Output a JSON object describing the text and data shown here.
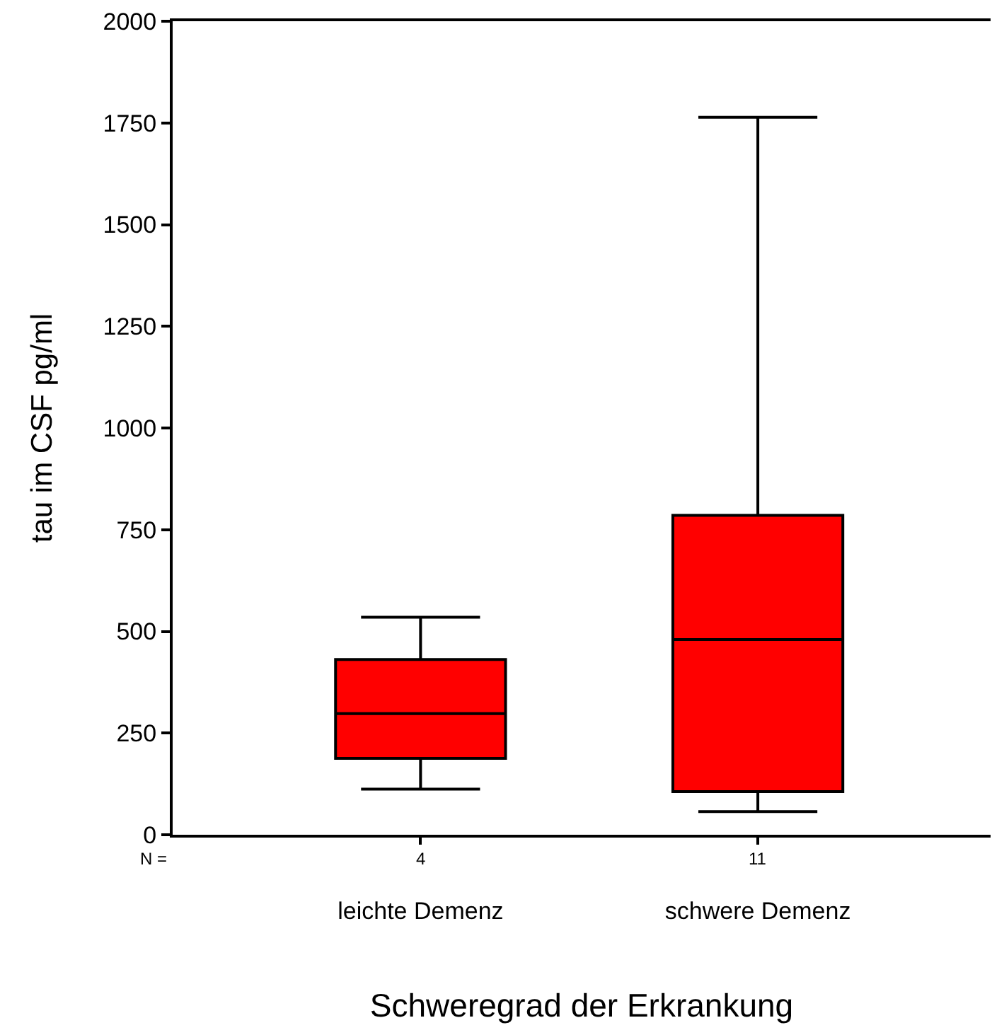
{
  "chart_data": {
    "type": "box",
    "xlabel": "Schweregrad der Erkrankung",
    "ylabel": "tau im CSF pg/ml",
    "categories": [
      "leichte Demenz",
      "schwere Demenz"
    ],
    "boxes": [
      {
        "low": 112,
        "q1": 188,
        "median": 298,
        "q3": 431,
        "high": 535
      },
      {
        "low": 57,
        "q1": 106,
        "median": 480,
        "q3": 785,
        "high": 1764
      }
    ],
    "color": "#ff0000",
    "ylim": [
      0,
      2000
    ],
    "yticks": [
      0,
      250,
      500,
      750,
      1000,
      1250,
      1500,
      1750,
      2000
    ],
    "grid": false,
    "annotations": [
      "N =",
      "4",
      "11"
    ]
  }
}
